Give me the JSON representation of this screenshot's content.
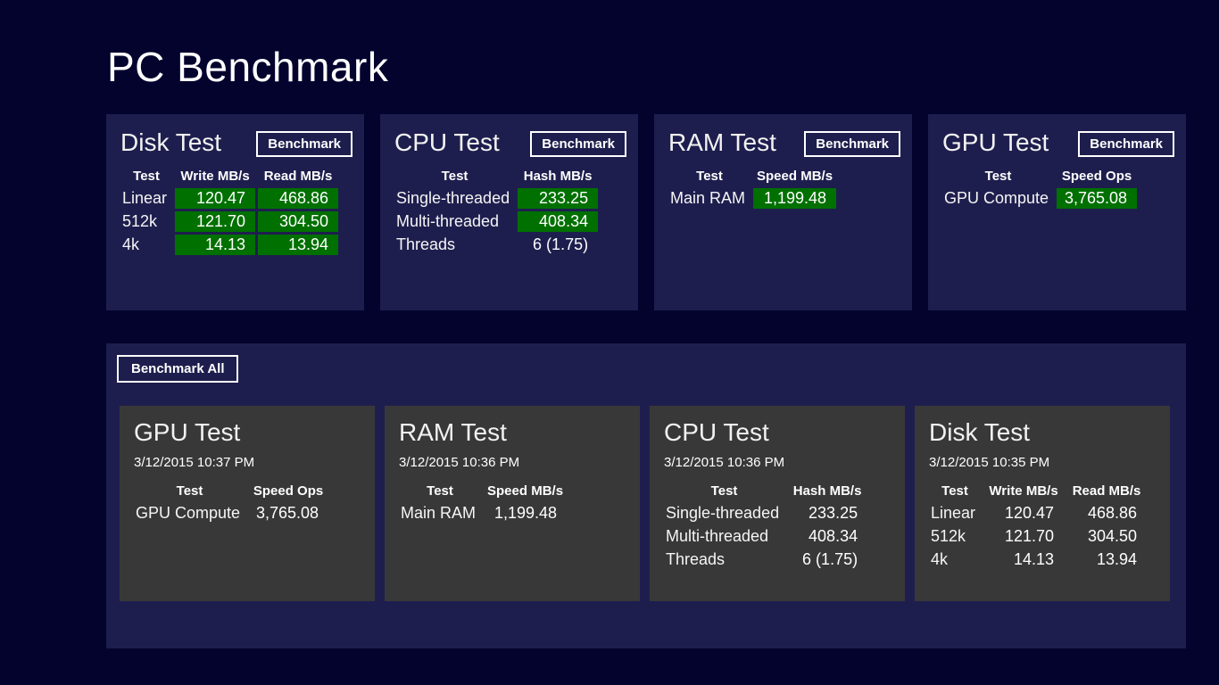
{
  "page": {
    "title": "PC Benchmark"
  },
  "colors": {
    "background": "#03032e",
    "panel": "#1e1e4e",
    "history_card": "#383838",
    "highlight_green": "#007000",
    "text": "#ffffff"
  },
  "buttons": {
    "benchmark": "Benchmark",
    "benchmark_all": "Benchmark All"
  },
  "top_cards": [
    {
      "id": "disk-test",
      "title": "Disk Test",
      "columns": [
        "Test",
        "Write MB/s",
        "Read MB/s"
      ],
      "rows": [
        {
          "label": "Linear",
          "values": [
            {
              "text": "120.47",
              "highlight": true
            },
            {
              "text": "468.86",
              "highlight": true
            }
          ]
        },
        {
          "label": "512k",
          "values": [
            {
              "text": "121.70",
              "highlight": true
            },
            {
              "text": "304.50",
              "highlight": true
            }
          ]
        },
        {
          "label": "4k",
          "values": [
            {
              "text": "14.13",
              "highlight": true
            },
            {
              "text": "13.94",
              "highlight": true
            }
          ]
        }
      ]
    },
    {
      "id": "cpu-test",
      "title": "CPU Test",
      "columns": [
        "Test",
        "Hash MB/s"
      ],
      "rows": [
        {
          "label": "Single-threaded",
          "values": [
            {
              "text": "233.25",
              "highlight": true
            }
          ]
        },
        {
          "label": "Multi-threaded",
          "values": [
            {
              "text": "408.34",
              "highlight": true
            }
          ]
        },
        {
          "label": "Threads",
          "values": [
            {
              "text": "6 (1.75)",
              "highlight": false
            }
          ]
        }
      ]
    },
    {
      "id": "ram-test",
      "title": "RAM Test",
      "columns": [
        "Test",
        "Speed MB/s"
      ],
      "rows": [
        {
          "label": "Main RAM",
          "values": [
            {
              "text": "1,199.48",
              "highlight": true
            }
          ]
        }
      ]
    },
    {
      "id": "gpu-test",
      "title": "GPU Test",
      "columns": [
        "Test",
        "Speed Ops"
      ],
      "rows": [
        {
          "label": "GPU Compute",
          "values": [
            {
              "text": "3,765.08",
              "highlight": true
            }
          ]
        }
      ]
    }
  ],
  "history_cards": [
    {
      "id": "gpu-test",
      "title": "GPU Test",
      "timestamp": "3/12/2015 10:37 PM",
      "columns": [
        "Test",
        "Speed Ops"
      ],
      "rows": [
        {
          "label": "GPU Compute",
          "values": [
            {
              "text": "3,765.08",
              "highlight": false
            }
          ]
        }
      ]
    },
    {
      "id": "ram-test",
      "title": "RAM Test",
      "timestamp": "3/12/2015 10:36 PM",
      "columns": [
        "Test",
        "Speed MB/s"
      ],
      "rows": [
        {
          "label": "Main RAM",
          "values": [
            {
              "text": "1,199.48",
              "highlight": false
            }
          ]
        }
      ]
    },
    {
      "id": "cpu-test",
      "title": "CPU Test",
      "timestamp": "3/12/2015 10:36 PM",
      "columns": [
        "Test",
        "Hash MB/s"
      ],
      "rows": [
        {
          "label": "Single-threaded",
          "values": [
            {
              "text": "233.25",
              "highlight": false
            }
          ]
        },
        {
          "label": "Multi-threaded",
          "values": [
            {
              "text": "408.34",
              "highlight": false
            }
          ]
        },
        {
          "label": "Threads",
          "values": [
            {
              "text": "6 (1.75)",
              "highlight": false
            }
          ]
        }
      ]
    },
    {
      "id": "disk-test",
      "title": "Disk Test",
      "timestamp": "3/12/2015 10:35 PM",
      "columns": [
        "Test",
        "Write MB/s",
        "Read MB/s"
      ],
      "rows": [
        {
          "label": "Linear",
          "values": [
            {
              "text": "120.47",
              "highlight": false
            },
            {
              "text": "468.86",
              "highlight": false
            }
          ]
        },
        {
          "label": "512k",
          "values": [
            {
              "text": "121.70",
              "highlight": false
            },
            {
              "text": "304.50",
              "highlight": false
            }
          ]
        },
        {
          "label": "4k",
          "values": [
            {
              "text": "14.13",
              "highlight": false
            },
            {
              "text": "13.94",
              "highlight": false
            }
          ]
        }
      ]
    }
  ]
}
